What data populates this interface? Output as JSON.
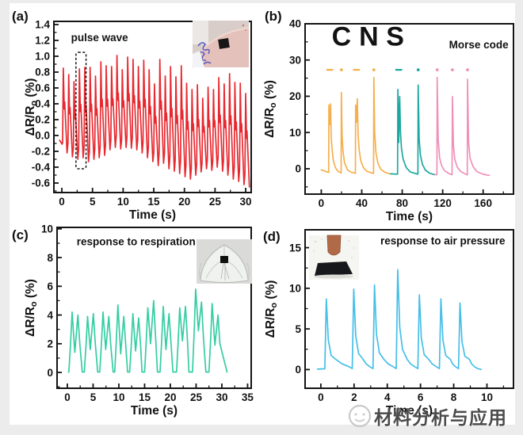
{
  "figure": {
    "panel_labels": [
      "(a)",
      "(b)",
      "(c)",
      "(d)"
    ]
  },
  "watermark": {
    "text": "材料分析与应用"
  },
  "panels": [
    {
      "id": "a",
      "label": "(a)",
      "annotation": "pulse wave"
    },
    {
      "id": "b",
      "label": "(b)",
      "annotation": "Morse code"
    },
    {
      "id": "c",
      "label": "(c)",
      "annotation": "response to respiration"
    },
    {
      "id": "d",
      "label": "(d)",
      "annotation": "response to air pressure"
    }
  ],
  "chart_data": [
    {
      "panel": "a",
      "type": "line",
      "title": "pulse wave",
      "title_pos": [
        1.5,
        1.19
      ],
      "title_anchor": "start",
      "xlabel": "Time (s)",
      "ylabel_parts": [
        "ΔR/R",
        "o",
        " (%)"
      ],
      "color": "#E8282F",
      "xlim": [
        -1.3,
        30.9
      ],
      "ylim": [
        -0.72,
        1.44
      ],
      "xticks": [
        0,
        5,
        10,
        15,
        20,
        25,
        30
      ],
      "x_minor": 2.5,
      "xdec": 0,
      "yticks": [
        -0.6,
        -0.4,
        -0.2,
        0,
        0.2,
        0.4,
        0.6,
        0.8,
        1.0,
        1.2,
        1.4
      ],
      "y_minor": 0.1,
      "ydec": 1,
      "pulse": {
        "t0": 0.1,
        "period": 0.875,
        "peaks": [
          0.85,
          0.77,
          0.68,
          0.84,
          0.86,
          0.86,
          0.75,
          0.93,
          0.88,
          0.87,
          1.01,
          0.83,
          0.99,
          0.96,
          0.87,
          0.95,
          0.83,
          0.65,
          0.96,
          0.75,
          0.87,
          0.74,
          0.88,
          0.66,
          0.58,
          0.64,
          0.47,
          0.61,
          0.58,
          0.73,
          0.65,
          0.78,
          0.67,
          0.66,
          0.53
        ],
        "troughs": [
          -0.22,
          -0.27,
          -0.3,
          -0.28,
          -0.33,
          -0.3,
          -0.28,
          -0.25,
          -0.18,
          -0.15,
          -0.17,
          -0.15,
          -0.16,
          -0.18,
          -0.22,
          -0.28,
          -0.33,
          -0.38,
          -0.35,
          -0.42,
          -0.45,
          -0.48,
          -0.52,
          -0.55,
          -0.5,
          -0.46,
          -0.42,
          -0.44,
          -0.4,
          -0.45,
          -0.5,
          -0.55,
          -0.58,
          -0.62,
          -0.65
        ]
      },
      "dashed_box": {
        "x1": 2.3,
        "x2": 3.95,
        "y1": -0.42,
        "y2": 1.05
      }
    },
    {
      "panel": "b",
      "type": "line",
      "note": "Morse code",
      "note_pos": [
        185,
        33.2
      ],
      "xlabel": "Time (s)",
      "ylabel_parts": [
        "ΔR/R",
        "o",
        " (%)"
      ],
      "xlim": [
        -16,
        190
      ],
      "ylim": [
        -7,
        40
      ],
      "xticks": [
        0,
        40,
        80,
        120,
        160
      ],
      "x_minor": 20,
      "xdec": 0,
      "yticks": [
        0,
        10,
        20,
        30,
        40
      ],
      "y_minor": 5,
      "ydec": 0,
      "letters_y": 34,
      "letters": [
        {
          "ch": "C",
          "x": 20,
          "color": "#E8A23C"
        },
        {
          "ch": "N",
          "x": 47,
          "color": "#17A69E"
        },
        {
          "ch": "S",
          "x": 73,
          "color": "#F08DB7"
        }
      ],
      "morse_y": 27.3,
      "morse": [
        {
          "x": 8.4,
          "kind": "dash",
          "color": "#F5AF4D"
        },
        {
          "x": 19.9,
          "kind": "dot",
          "color": "#F5AF4D"
        },
        {
          "x": 34.8,
          "kind": "dash",
          "color": "#F5AF4D"
        },
        {
          "x": 52.0,
          "kind": "dot",
          "color": "#F5AF4D"
        },
        {
          "x": 76.6,
          "kind": "dash",
          "color": "#1CA8A0"
        },
        {
          "x": 95.8,
          "kind": "dot",
          "color": "#1CA8A0"
        },
        {
          "x": 114.6,
          "kind": "dot",
          "color": "#F090B8"
        },
        {
          "x": 129.6,
          "kind": "dot",
          "color": "#F090B8"
        },
        {
          "x": 144.6,
          "kind": "dot",
          "color": "#F090B8"
        }
      ],
      "series": [
        {
          "name": "C",
          "color": "#F5AF4D",
          "points": [
            [
              0,
              -0.3
            ],
            [
              3,
              -0.6
            ],
            [
              6.5,
              -0.95
            ],
            [
              7.3,
              -1.0
            ],
            [
              7.6,
              17.6
            ],
            [
              8.4,
              12.2
            ],
            [
              9.2,
              17.9
            ],
            [
              9.8,
              9
            ],
            [
              10.6,
              5.5
            ],
            [
              12,
              2.2
            ],
            [
              14,
              0.3
            ],
            [
              16.5,
              -0.7
            ],
            [
              19.6,
              -1.15
            ],
            [
              19.9,
              21.0
            ],
            [
              20.6,
              9
            ],
            [
              21.5,
              4.8
            ],
            [
              23,
              1.6
            ],
            [
              26,
              -0.3
            ],
            [
              29,
              -0.9
            ],
            [
              33.7,
              -1.25
            ],
            [
              34.0,
              17.6
            ],
            [
              34.8,
              12.8
            ],
            [
              35.6,
              19.3
            ],
            [
              36.4,
              9.5
            ],
            [
              37.5,
              5.2
            ],
            [
              39,
              2.3
            ],
            [
              41.5,
              0.4
            ],
            [
              45,
              -0.7
            ],
            [
              51.7,
              -1.3
            ],
            [
              52.0,
              25.2
            ],
            [
              52.8,
              10
            ],
            [
              54,
              4.5
            ],
            [
              56,
              1.5
            ],
            [
              59,
              -0.2
            ],
            [
              63,
              -1.0
            ],
            [
              67,
              -1.35
            ],
            [
              68.5,
              -1.4
            ]
          ]
        },
        {
          "name": "N",
          "color": "#1CA8A0",
          "points": [
            [
              68.5,
              -1.4
            ],
            [
              75.4,
              -1.5
            ],
            [
              75.7,
              21.9
            ],
            [
              76.6,
              7.3
            ],
            [
              77.5,
              19.9
            ],
            [
              78.3,
              10
            ],
            [
              79.3,
              5.5
            ],
            [
              81,
              2.6
            ],
            [
              84,
              0.3
            ],
            [
              88,
              -0.9
            ],
            [
              95.5,
              -1.5
            ],
            [
              95.8,
              23.1
            ],
            [
              96.8,
              8
            ],
            [
              98,
              3.8
            ],
            [
              100,
              1.2
            ],
            [
              103,
              -0.4
            ],
            [
              107,
              -1.2
            ],
            [
              111.5,
              -1.6
            ],
            [
              112.5,
              -1.6
            ]
          ]
        },
        {
          "name": "S",
          "color": "#F090B8",
          "points": [
            [
              112.5,
              -1.6
            ],
            [
              114.3,
              -1.65
            ],
            [
              114.6,
              25.2
            ],
            [
              115.6,
              8
            ],
            [
              117,
              3
            ],
            [
              119,
              0.8
            ],
            [
              122,
              -0.6
            ],
            [
              126,
              -1.3
            ],
            [
              129.3,
              -1.65
            ],
            [
              129.6,
              19.9
            ],
            [
              130.6,
              6.5
            ],
            [
              132,
              2.5
            ],
            [
              134.5,
              0.4
            ],
            [
              138,
              -0.8
            ],
            [
              144.3,
              -1.7
            ],
            [
              144.6,
              24.7
            ],
            [
              145.6,
              7.5
            ],
            [
              147,
              3
            ],
            [
              150,
              0.6
            ],
            [
              154,
              -0.8
            ],
            [
              159,
              -1.4
            ],
            [
              164,
              -1.75
            ],
            [
              166,
              -1.8
            ]
          ]
        }
      ]
    },
    {
      "panel": "c",
      "type": "line",
      "title": "response to respiration",
      "title_pos": [
        1.8,
        8.85
      ],
      "title_anchor": "start",
      "xlabel": "Time (s)",
      "ylabel_parts": [
        "ΔR/R",
        "o",
        " (%)"
      ],
      "color": "#35CDA2",
      "xlim": [
        -2,
        35.7
      ],
      "ylim": [
        -1.1,
        10.1
      ],
      "xticks": [
        0,
        5,
        10,
        15,
        20,
        25,
        30,
        35
      ],
      "x_minor": 2.5,
      "xdec": 0,
      "yticks": [
        0,
        2,
        4,
        6,
        8,
        10
      ],
      "y_minor": 1,
      "ydec": 0,
      "cycles": [
        [
          0.3,
          4.2,
          1.4,
          4.0,
          2.9
        ],
        [
          3.3,
          3.9,
          1.6,
          4.1,
          5.9
        ],
        [
          6.3,
          4.2,
          1.6,
          3.9,
          8.9
        ],
        [
          9.2,
          4.7,
          1.3,
          3.9,
          11.7
        ],
        [
          12.1,
          4.1,
          1.5,
          3.8,
          14.5
        ],
        [
          15.0,
          4.5,
          2.0,
          5.0,
          17.5
        ],
        [
          18.0,
          4.6,
          1.6,
          4.1,
          20.5
        ],
        [
          21.2,
          4.5,
          2.2,
          4.6,
          23.6
        ],
        [
          24.3,
          5.8,
          2.9,
          4.9,
          26.9
        ],
        [
          27.5,
          4.8,
          1.9,
          4.0,
          31.0
        ]
      ]
    },
    {
      "panel": "d",
      "type": "line",
      "title": "response to air pressure",
      "title_pos": [
        11.1,
        15.4
      ],
      "title_anchor": "end",
      "xlabel": "Time (s)",
      "ylabel_parts": [
        "ΔR/R",
        "o",
        " (%)"
      ],
      "color": "#45BEE8",
      "xlim": [
        -0.95,
        11.6
      ],
      "ylim": [
        -2.3,
        17.2
      ],
      "xticks": [
        0,
        2,
        4,
        6,
        8,
        10
      ],
      "x_minor": 1,
      "xdec": 0,
      "yticks": [
        0,
        5,
        10,
        15
      ],
      "y_minor": 2.5,
      "ydec": 0,
      "base": 0.05,
      "spikes": [
        [
          0.3,
          8.7
        ],
        [
          1.95,
          9.9
        ],
        [
          3.2,
          10.4
        ],
        [
          4.6,
          12.3
        ],
        [
          5.9,
          9.2
        ],
        [
          7.2,
          8.7
        ],
        [
          8.35,
          8.2
        ]
      ]
    }
  ]
}
